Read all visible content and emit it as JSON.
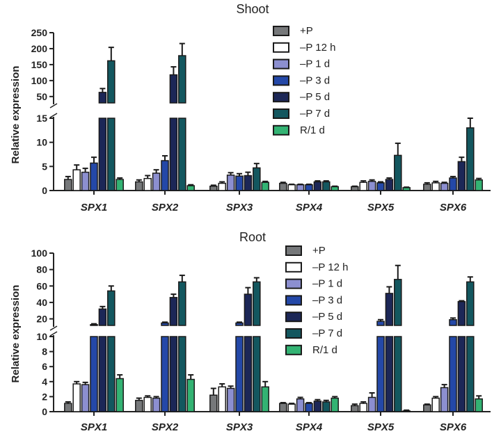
{
  "chart_data": [
    {
      "type": "bar",
      "title": "Shoot",
      "ylabel": "Relative expression",
      "categories": [
        "SPX1",
        "SPX2",
        "SPX3",
        "SPX4",
        "SPX5",
        "SPX6"
      ],
      "axis_break": {
        "lower": [
          0,
          15
        ],
        "upper": [
          30,
          250
        ]
      },
      "lower_ticks": [
        "0",
        "5",
        "10",
        "15"
      ],
      "upper_ticks": [
        "50",
        "100",
        "150",
        "200",
        "250"
      ],
      "series": [
        {
          "name": "+P",
          "color": "#76787a",
          "values": [
            2.3,
            1.8,
            0.9,
            1.5,
            0.8,
            1.3
          ],
          "errors": [
            0.6,
            0.4,
            0.2,
            0.2,
            0.1,
            0.3
          ]
        },
        {
          "name": "–P 12 h",
          "color": "#ffffff",
          "values": [
            4.3,
            2.5,
            1.5,
            1.2,
            1.7,
            1.6
          ],
          "errors": [
            1.0,
            0.6,
            0.3,
            0.1,
            0.3,
            0.3
          ]
        },
        {
          "name": "–P 1 d",
          "color": "#8c8fd0",
          "values": [
            3.8,
            3.6,
            3.2,
            1.2,
            1.9,
            1.5
          ],
          "errors": [
            0.8,
            0.7,
            0.5,
            0.1,
            0.3,
            0.2
          ]
        },
        {
          "name": "–P 3 d",
          "color": "#2448a8",
          "values": [
            5.7,
            6.2,
            3.0,
            1.2,
            1.6,
            2.6
          ],
          "errors": [
            1.2,
            1.0,
            0.5,
            0.1,
            0.2,
            0.3
          ]
        },
        {
          "name": "–P 5 d",
          "color": "#1c2757",
          "values": [
            63,
            118,
            3.1,
            1.8,
            2.3,
            6.0
          ],
          "errors": [
            12,
            25,
            0.7,
            0.2,
            0.3,
            0.9
          ]
        },
        {
          "name": "–P 7 d",
          "color": "#13575f",
          "values": [
            162,
            178,
            4.7,
            1.8,
            7.3,
            13.0
          ],
          "errors": [
            42,
            38,
            0.9,
            0.2,
            2.5,
            2.0
          ]
        },
        {
          "name": "R/1 d",
          "color": "#33b373",
          "values": [
            2.3,
            1.0,
            1.7,
            0.8,
            0.6,
            2.2
          ],
          "errors": [
            0.3,
            0.2,
            0.2,
            0.1,
            0.1,
            0.3
          ]
        }
      ]
    },
    {
      "type": "bar",
      "title": "Root",
      "ylabel": "Relative expression",
      "categories": [
        "SPX1",
        "SPX2",
        "SPX3",
        "SPX4",
        "SPX5",
        "SPX6"
      ],
      "axis_break": {
        "lower": [
          0,
          10
        ],
        "upper": [
          12,
          100
        ]
      },
      "lower_ticks": [
        "0",
        "2",
        "4",
        "6",
        "8",
        "10"
      ],
      "upper_ticks": [
        "20",
        "40",
        "60",
        "80",
        "100"
      ],
      "series": [
        {
          "name": "+P",
          "color": "#76787a",
          "values": [
            1.1,
            1.5,
            2.2,
            1.1,
            0.8,
            0.9
          ],
          "errors": [
            0.2,
            0.3,
            0.9,
            0.1,
            0.2,
            0.1
          ]
        },
        {
          "name": "–P 12 h",
          "color": "#ffffff",
          "values": [
            3.7,
            1.9,
            3.3,
            1.0,
            1.1,
            1.8
          ],
          "errors": [
            0.3,
            0.2,
            0.4,
            0.1,
            0.2,
            0.2
          ]
        },
        {
          "name": "–P 1 d",
          "color": "#8c8fd0",
          "values": [
            3.6,
            1.8,
            3.1,
            1.7,
            1.9,
            3.2
          ],
          "errors": [
            0.3,
            0.2,
            0.3,
            0.2,
            0.6,
            0.4
          ]
        },
        {
          "name": "–P 3 d",
          "color": "#2448a8",
          "values": [
            13,
            15,
            15,
            1.1,
            17,
            19
          ],
          "errors": [
            1,
            1,
            1,
            0.1,
            2,
            2
          ]
        },
        {
          "name": "–P 5 d",
          "color": "#1c2757",
          "values": [
            32,
            46,
            50,
            1.4,
            51,
            41
          ],
          "errors": [
            3,
            4,
            8,
            0.2,
            8,
            1
          ]
        },
        {
          "name": "–P 7 d",
          "color": "#13575f",
          "values": [
            54,
            65,
            65,
            1.3,
            68,
            65
          ],
          "errors": [
            6,
            8,
            5,
            0.2,
            17,
            6
          ]
        },
        {
          "name": "R/1 d",
          "color": "#33b373",
          "values": [
            4.4,
            4.3,
            3.3,
            1.8,
            0.1,
            1.7
          ],
          "errors": [
            0.5,
            0.6,
            0.7,
            0.2,
            0.1,
            0.4
          ]
        }
      ]
    }
  ]
}
